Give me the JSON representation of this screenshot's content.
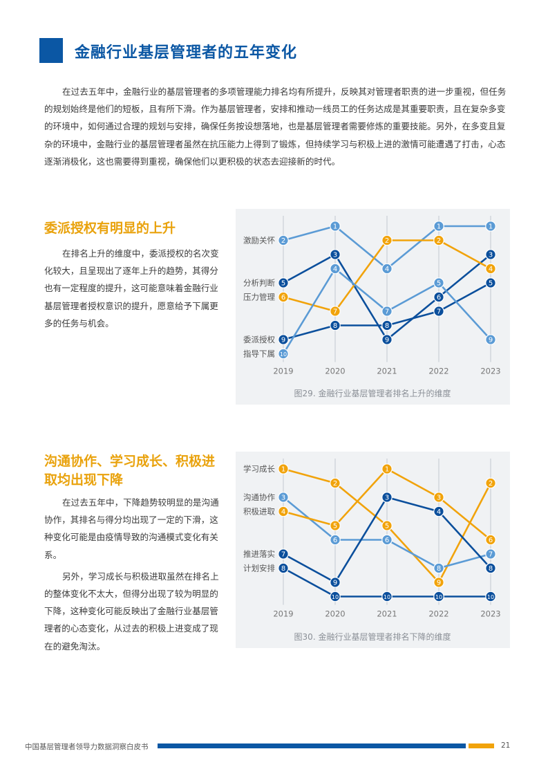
{
  "page": {
    "title": "金融行业基层管理者的五年变化",
    "intro": "在过去五年中，金融行业的基层管理者的多项管理能力排名均有所提升，反映其对管理者职责的进一步重视，但任务的规划始终是他们的短板，且有所下滑。作为基层管理者，安排和推动一线员工的任务达成是其重要职责，且在复杂多变的环境中，如何通过合理的规划与安排，确保任务按设想落地，也是基层管理者需要修炼的重要技能。另外，在多变且复杂的环境中，金融行业的基层管理者虽然在抗压能力上得到了锻炼，但持续学习与积极上进的激情可能遭遇了打击，心态逐渐消极化，这也需要得到重视，确保他们以更积极的状态去迎接新的时代。"
  },
  "section1": {
    "title": "委派授权有明显的上升",
    "paragraphs": [
      "在排名上升的维度中，委派授权的名次变化较大，且呈现出了逐年上升的趋势，其得分也有一定程度的提升，这可能意味着金融行业基层管理者授权意识的提升，愿意给予下属更多的任务与机会。"
    ]
  },
  "section2": {
    "title": "沟通协作、学习成长、积极进取均出现下降",
    "paragraphs": [
      "在过去五年中，下降趋势较明显的是沟通协作，其排名与得分均出现了一定的下滑，这种变化可能是由疫情导致的沟通模式变化有关系。",
      "另外，学习成长与积极进取虽然在排名上的整体变化不太大，但得分出现了较为明显的下降，这种变化可能反映出了金融行业基层管理者的心态变化，从过去的积极上进变成了现在的避免淘汰。"
    ]
  },
  "colors": {
    "dark": "#0b4f9c",
    "light": "#5b9bd5",
    "orange": "#f1a30b"
  },
  "chart_data": [
    {
      "type": "line",
      "subtype": "bump",
      "caption": "图29. 金融行业基层管理者排名上升的维度",
      "x": [
        "2019",
        "2020",
        "2021",
        "2022",
        "2023"
      ],
      "ylim": [
        1,
        10
      ],
      "y_inverted": true,
      "grid": "vertical",
      "series": [
        {
          "name": "激励关怀",
          "color": "light",
          "values": [
            2,
            1,
            4,
            1,
            1
          ]
        },
        {
          "name": "分析判断",
          "color": "dark",
          "values": [
            5,
            3,
            9,
            6,
            3
          ]
        },
        {
          "name": "压力管理",
          "color": "orange",
          "values": [
            6,
            7,
            2,
            2,
            4
          ]
        },
        {
          "name": "委派授权",
          "color": "dark",
          "values": [
            9,
            8,
            8,
            7,
            5
          ]
        },
        {
          "name": "指导下属",
          "color": "light",
          "values": [
            10,
            4,
            7,
            5,
            9
          ]
        }
      ]
    },
    {
      "type": "line",
      "subtype": "bump",
      "caption": "图30. 金融行业基层管理者排名下降的维度",
      "x": [
        "2019",
        "2020",
        "2021",
        "2022",
        "2023"
      ],
      "ylim": [
        1,
        10
      ],
      "y_inverted": true,
      "grid": "vertical",
      "series": [
        {
          "name": "学习成长",
          "color": "orange",
          "values": [
            1,
            2,
            5,
            9,
            2
          ]
        },
        {
          "name": "沟通协作",
          "color": "light",
          "values": [
            3,
            6,
            6,
            8,
            7
          ]
        },
        {
          "name": "积极进取",
          "color": "orange",
          "values": [
            4,
            5,
            1,
            3,
            6
          ]
        },
        {
          "name": "推进落实",
          "color": "dark",
          "values": [
            7,
            9,
            3,
            4,
            8
          ]
        },
        {
          "name": "计划安排",
          "color": "dark",
          "values": [
            8,
            10,
            10,
            10,
            10
          ]
        }
      ]
    }
  ],
  "footer": {
    "text": "中国基层管理者领导力数据洞察白皮书",
    "page_number": "21"
  }
}
